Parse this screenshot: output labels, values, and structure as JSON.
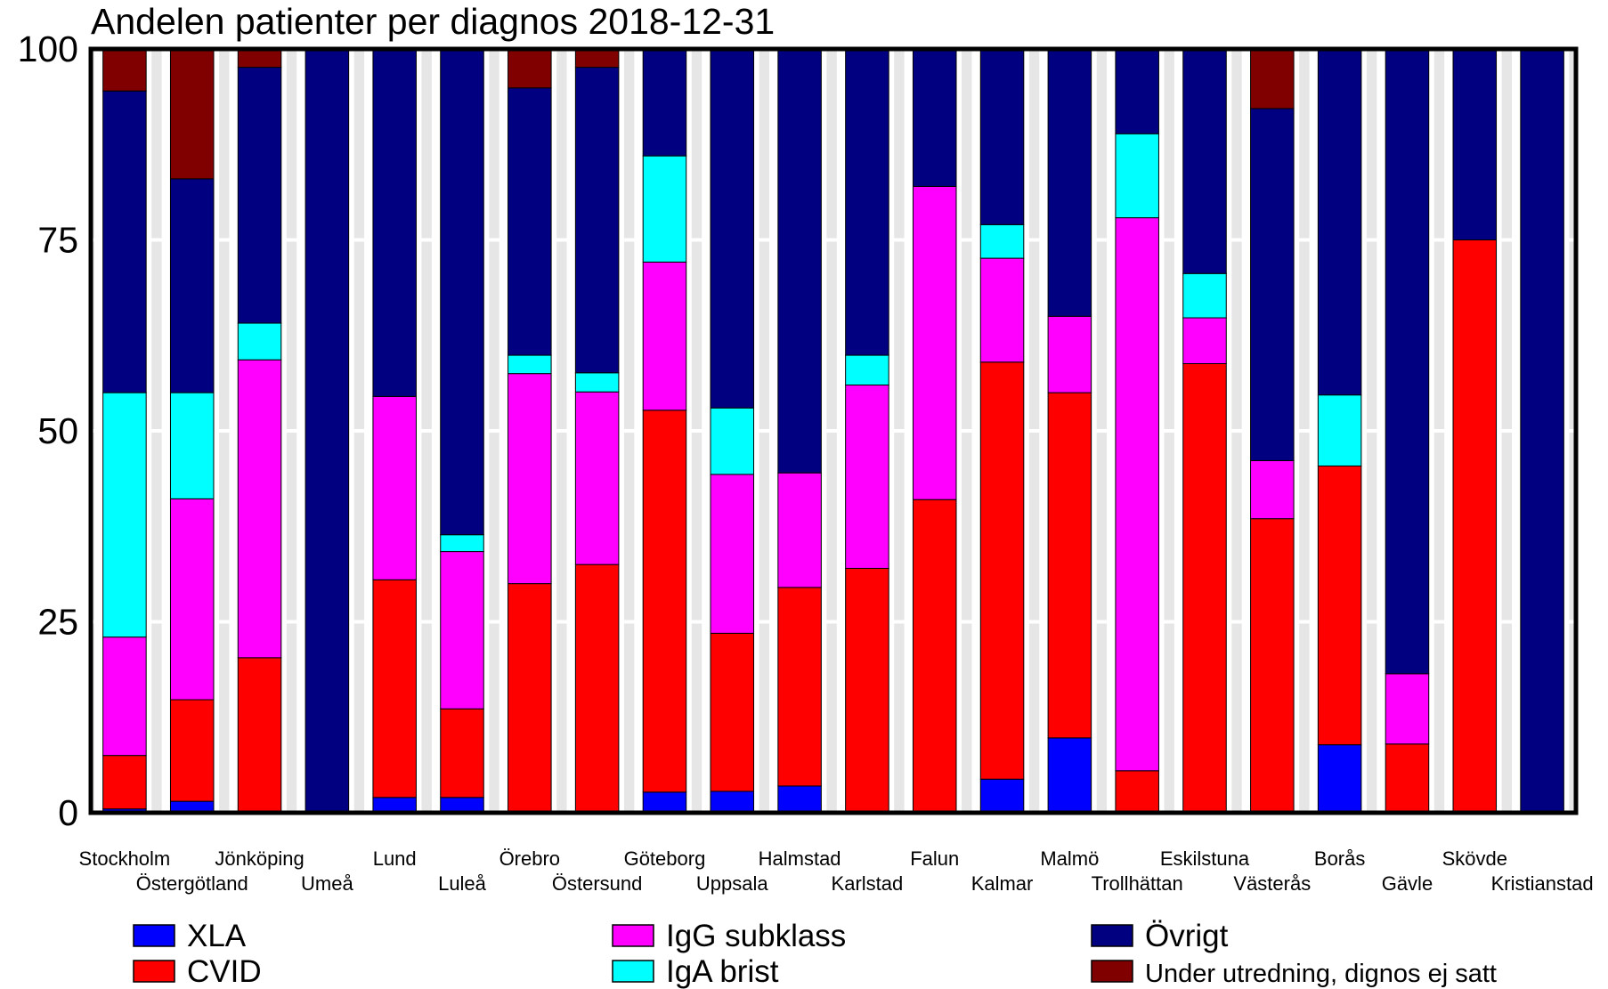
{
  "chart_data": {
    "type": "bar",
    "stacked": true,
    "title": "Andelen patienter per diagnos 2018-12-31",
    "xlabel": "",
    "ylabel": "",
    "ylim": [
      0,
      100
    ],
    "yticks": [
      "0",
      "25",
      "50",
      "75",
      "100"
    ],
    "grid": true,
    "legend_position": "bottom",
    "categories": [
      "Stockholm",
      "Östergötland",
      "Jönköping",
      "Umeå",
      "Lund",
      "Luleå",
      "Örebro",
      "Östersund",
      "Göteborg",
      "Uppsala",
      "Halmstad",
      "Karlstad",
      "Falun",
      "Kalmar",
      "Malmö",
      "Trollhättan",
      "Eskilstuna",
      "Västerås",
      "Borås",
      "Gävle",
      "Skövde",
      "Kristianstad"
    ],
    "series": [
      {
        "name": "XLA",
        "color": "#0000ff",
        "values": [
          0.5,
          1.5,
          0,
          0,
          2,
          2,
          0,
          0,
          2.7,
          2.8,
          3.5,
          0,
          0,
          4.4,
          9.8,
          0,
          0,
          0,
          8.9,
          0,
          0,
          0
        ]
      },
      {
        "name": "CVID",
        "color": "#ff0000",
        "values": [
          7,
          13.3,
          20.3,
          0,
          28.5,
          11.6,
          30,
          32.5,
          50,
          20.7,
          26,
          32,
          41,
          54.6,
          45.2,
          5.5,
          58.8,
          38.5,
          36.5,
          9,
          75,
          0
        ]
      },
      {
        "name": "IgG subklass",
        "color": "#ff00ff",
        "values": [
          15.5,
          26.3,
          39,
          0,
          24,
          20.6,
          27.5,
          22.6,
          19.4,
          20.8,
          15,
          24,
          41,
          13.6,
          10,
          72.4,
          6,
          7.6,
          0,
          9.2,
          0,
          0
        ]
      },
      {
        "name": "IgA brist",
        "color": "#00ffff",
        "values": [
          32,
          13.9,
          4.8,
          0,
          0,
          2.2,
          2.4,
          2.5,
          13.9,
          8.7,
          0,
          3.9,
          0,
          4.4,
          0,
          11,
          5.8,
          0,
          9.3,
          0,
          0,
          0
        ]
      },
      {
        "name": "Övrigt",
        "color": "#000080",
        "values": [
          39.5,
          28,
          33.5,
          100,
          45.5,
          63.6,
          35,
          40,
          14,
          47,
          55.5,
          40.1,
          18,
          22.9,
          35,
          11.1,
          29.4,
          46.1,
          45.3,
          81.8,
          25,
          100
        ]
      },
      {
        "name": "Under utredning, dignos ej satt",
        "color": "#800000",
        "values": [
          5.5,
          17,
          2.4,
          0,
          0,
          0,
          5.1,
          2.4,
          0,
          0,
          0,
          0,
          0,
          0,
          0,
          0,
          0,
          7.8,
          0,
          0,
          0,
          0
        ]
      }
    ]
  }
}
